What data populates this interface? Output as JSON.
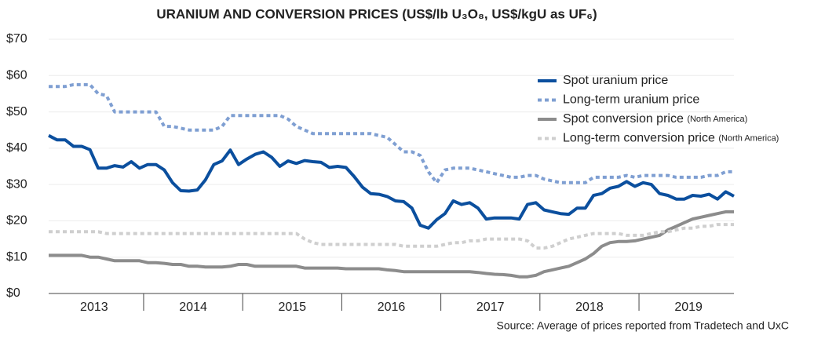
{
  "chart_data": {
    "type": "line",
    "title": "URANIUM AND CONVERSION PRICES (US$/lb U₃O₈, US$/kgU as UF₆)",
    "source": "Source: Average of prices reported from Tradetech and UxC",
    "categories": [
      null,
      null,
      null,
      null,
      null,
      null,
      "2013",
      null,
      null,
      null,
      null,
      null,
      null,
      null,
      null,
      null,
      null,
      null,
      "2014",
      null,
      null,
      null,
      null,
      null,
      null,
      null,
      null,
      null,
      null,
      null,
      "2015",
      null,
      null,
      null,
      null,
      null,
      null,
      null,
      null,
      null,
      null,
      null,
      "2016",
      null,
      null,
      null,
      null,
      null,
      null,
      null,
      null,
      null,
      null,
      null,
      "2017",
      null,
      null,
      null,
      null,
      null,
      null,
      null,
      null,
      null,
      null,
      null,
      "2018",
      null,
      null,
      null,
      null,
      null,
      null,
      null,
      null,
      null,
      null,
      null,
      "2019",
      null,
      null,
      null,
      null,
      null
    ],
    "ylim": [
      0,
      70
    ],
    "yticks": [
      {
        "value": 0,
        "label": "$0"
      },
      {
        "value": 10,
        "label": "$10"
      },
      {
        "value": 20,
        "label": "$20"
      },
      {
        "value": 30,
        "label": "$30"
      },
      {
        "value": 40,
        "label": "$40"
      },
      {
        "value": 50,
        "label": "$50"
      },
      {
        "value": 60,
        "label": "$60"
      },
      {
        "value": 70,
        "label": "$70"
      }
    ],
    "grid": true,
    "legend": "upper right",
    "series": [
      {
        "name": "Spot uranium price",
        "color": "#0b4f9e",
        "dashed": false,
        "values": [
          43.5,
          42.3,
          42.3,
          40.5,
          40.5,
          39.6,
          34.5,
          34.5,
          35.2,
          34.8,
          36.3,
          34.5,
          35.5,
          35.5,
          34.0,
          30.5,
          28.3,
          28.2,
          28.5,
          31.3,
          35.5,
          36.5,
          39.5,
          35.5,
          37.0,
          38.3,
          39.0,
          37.5,
          35.0,
          36.5,
          35.8,
          36.6,
          36.3,
          36.1,
          34.7,
          35.0,
          34.7,
          32.2,
          29.3,
          27.5,
          27.3,
          26.7,
          25.5,
          25.3,
          23.5,
          18.8,
          18.0,
          20.3,
          22.0,
          25.5,
          24.5,
          25.0,
          23.5,
          20.5,
          20.8,
          20.8,
          20.8,
          20.5,
          24.5,
          25.0,
          23.0,
          22.5,
          22.0,
          21.8,
          23.5,
          23.5,
          27.0,
          27.5,
          29.0,
          29.5,
          30.8,
          29.5,
          30.5,
          30.0,
          27.5,
          27.0,
          26.0,
          26.0,
          27.0,
          26.8,
          27.3,
          26.0,
          28.0,
          26.8
        ]
      },
      {
        "name": "Long-term uranium price",
        "color": "#7f9fd2",
        "dashed": true,
        "values": [
          57,
          57,
          57,
          57.5,
          57.5,
          57.5,
          55,
          54.5,
          50,
          50,
          50,
          50,
          50,
          50,
          46,
          46,
          45.5,
          45,
          45,
          45,
          45,
          46,
          49,
          49,
          49,
          49,
          49,
          49,
          49,
          48,
          46,
          45,
          44,
          44,
          44,
          44,
          44,
          44,
          44,
          44,
          43.5,
          43,
          41,
          39,
          39,
          38,
          33.5,
          30.5,
          34,
          34.5,
          34.5,
          34.5,
          34,
          33.5,
          33,
          32.5,
          32,
          32,
          32.5,
          32.5,
          31.5,
          31,
          30.5,
          30.5,
          30.5,
          30.5,
          32,
          32,
          32,
          32,
          32.5,
          32,
          32.5,
          32.5,
          32.5,
          32.5,
          32,
          32,
          32,
          32,
          32.5,
          32.5,
          33.5,
          33.5
        ]
      },
      {
        "name": "Spot conversion price",
        "note": "(North America)",
        "color": "#8c8c8c",
        "dashed": false,
        "values": [
          10.5,
          10.5,
          10.5,
          10.5,
          10.5,
          10,
          10,
          9.5,
          9,
          9,
          9,
          9,
          8.5,
          8.5,
          8.3,
          8,
          8,
          7.5,
          7.5,
          7.3,
          7.3,
          7.3,
          7.5,
          8,
          8,
          7.5,
          7.5,
          7.5,
          7.5,
          7.5,
          7.5,
          7,
          7,
          7,
          7,
          7,
          6.8,
          6.8,
          6.8,
          6.8,
          6.8,
          6.5,
          6.3,
          6,
          6,
          6,
          6,
          6,
          6,
          6,
          6,
          6,
          5.8,
          5.5,
          5.3,
          5.2,
          5,
          4.6,
          4.6,
          5,
          6,
          6.5,
          7,
          7.5,
          8.5,
          9.5,
          11,
          13,
          14,
          14.3,
          14.3,
          14.5,
          15,
          15.5,
          16,
          17.5,
          18.5,
          19.5,
          20.5,
          21,
          21.5,
          22,
          22.5,
          22.5
        ]
      },
      {
        "name": "Long-term conversion price",
        "note": "(North America)",
        "color": "#cfcfcf",
        "dashed": true,
        "values": [
          17,
          17,
          17,
          17,
          17,
          17,
          17,
          16.5,
          16.5,
          16.5,
          16.5,
          16.5,
          16.5,
          16.5,
          16.5,
          16.5,
          16.5,
          16.5,
          16.5,
          16.5,
          16.5,
          16.5,
          16.5,
          16.5,
          16.5,
          16.5,
          16.5,
          16.5,
          16.5,
          16.5,
          16.5,
          15,
          14,
          13.5,
          13.5,
          13.5,
          13.5,
          13.5,
          13.5,
          13.5,
          13.5,
          13.5,
          13.5,
          13,
          13,
          13,
          13,
          13,
          13.5,
          14,
          14,
          14.5,
          14.5,
          15,
          15,
          15,
          15,
          15,
          14.5,
          12.5,
          12.5,
          13,
          14,
          15,
          15.5,
          16,
          16.5,
          16.5,
          16.5,
          16.5,
          16,
          16,
          16,
          16.5,
          17,
          17,
          17.5,
          18,
          18,
          18.5,
          18.5,
          19,
          19,
          19
        ]
      }
    ]
  }
}
